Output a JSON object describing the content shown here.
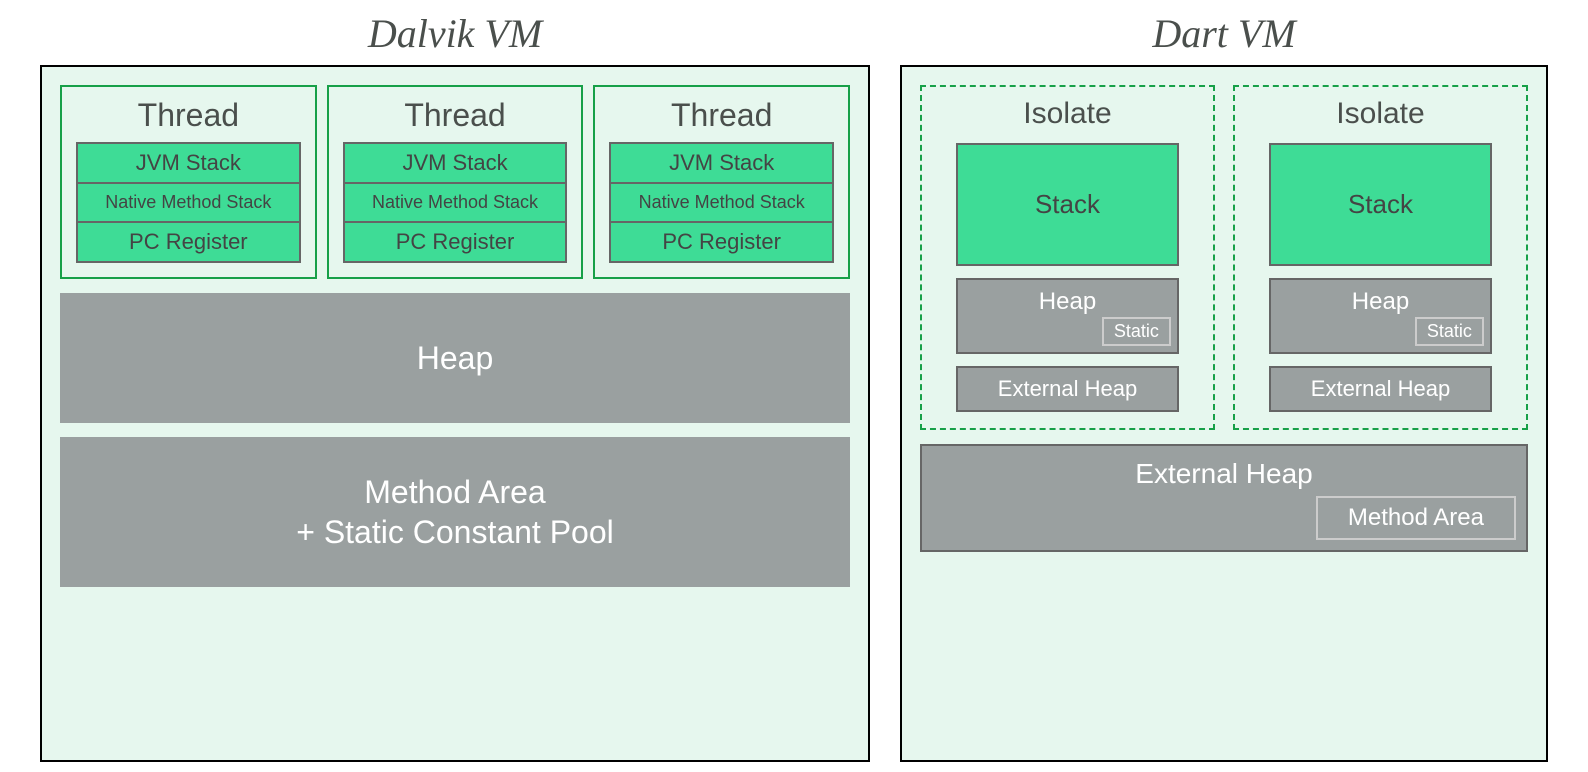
{
  "colors": {
    "panel_bg": "#e6f7ee",
    "thread_border": "#17a048",
    "cell_bg_green": "#3edc96",
    "cell_border": "#666666",
    "gray_block": "#9aa0a0",
    "text_dark": "#4a4f4c",
    "text_white": "#ffffff",
    "inner_box_border": "#cccccc",
    "panel_border": "#000000"
  },
  "typography": {
    "title_font": "Georgia serif italic",
    "title_size_pt": 30,
    "body_font": "Helvetica Neue sans-serif",
    "large_label_pt": 24,
    "small_label_pt": 16
  },
  "dalvik": {
    "title": "Dalvik VM",
    "threads": [
      {
        "title": "Thread",
        "rows": [
          "JVM Stack",
          "Native Method Stack",
          "PC Register"
        ]
      },
      {
        "title": "Thread",
        "rows": [
          "JVM Stack",
          "Native Method Stack",
          "PC Register"
        ]
      },
      {
        "title": "Thread",
        "rows": [
          "JVM Stack",
          "Native Method Stack",
          "PC Register"
        ]
      }
    ],
    "heap_label": "Heap",
    "method_area_line1": "Method Area",
    "method_area_line2": "+ Static Constant Pool"
  },
  "dart": {
    "title": "Dart VM",
    "isolates": [
      {
        "title": "Isolate",
        "stack": "Stack",
        "heap": "Heap",
        "static": "Static",
        "external_heap": "External Heap"
      },
      {
        "title": "Isolate",
        "stack": "Stack",
        "heap": "Heap",
        "static": "Static",
        "external_heap": "External Heap"
      }
    ],
    "bottom_external_heap": "External Heap",
    "bottom_method_area": "Method Area"
  }
}
